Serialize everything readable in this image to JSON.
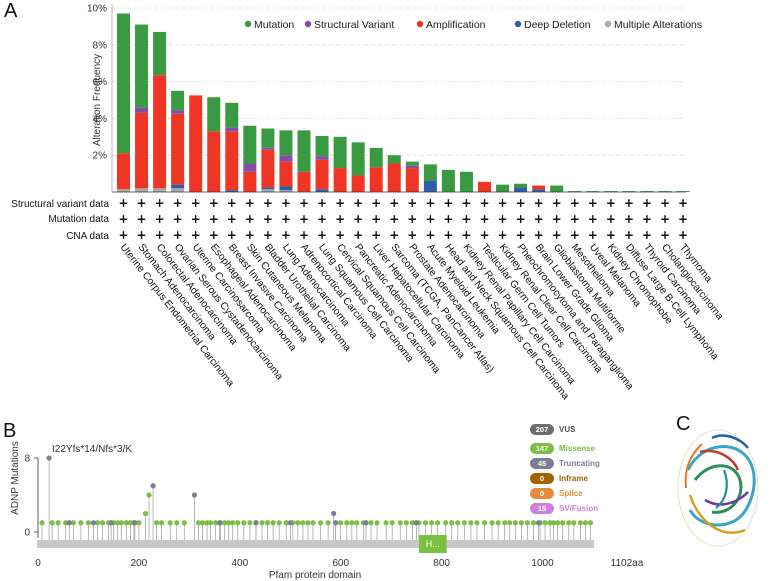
{
  "figure": {
    "panel_a": "A",
    "panel_b": "B",
    "panel_c": "C"
  },
  "colors": {
    "mutation": "#3a9a42",
    "structural_variant": "#8450a6",
    "amplification": "#ef3523",
    "deep_deletion": "#2f5fa8",
    "multiple": "#a9a9a9",
    "missense": "#7bc043",
    "truncating": "#7d7d94",
    "inframe": "#a36200",
    "splice": "#e58c3a",
    "sv_fusion": "#d07fe0",
    "vus": "#6d6d6d",
    "domain": "#7bc043",
    "track": "#c8c8c8"
  },
  "chart_data": [
    {
      "type": "bar",
      "stacked": true,
      "title": "",
      "ylabel": "Alteration Frequency",
      "ylim": [
        0,
        10
      ],
      "yticks": [
        "2%",
        "4%",
        "6%",
        "8%",
        "10%"
      ],
      "ytick_values": [
        2,
        4,
        6,
        8,
        10
      ],
      "grid": true,
      "legend_position": "top-right",
      "legend": [
        "Mutation",
        "Structural Variant",
        "Amplification",
        "Deep Deletion",
        "Multiple Alterations"
      ],
      "categories": [
        "Uterine Corpus Endometrial Carcinoma",
        "Stomach Adenocarcinoma",
        "Colorectal Adenocarcinoma",
        "Ovarian Serous Cystadenocarcinoma",
        "Uterine Carcinosarcoma",
        "Esophageal Adenocarcinoma",
        "Breast Invasive Carcinoma",
        "Skin Cutaneous Melanoma",
        "Bladder Urothelial Carcinoma",
        "Lung Adenocarcinoma",
        "Adrenocortical Carcinoma",
        "Lung Squamous Cell Carcinoma",
        "Cervical Squamous Cell Carcinoma",
        "Pancreatic Adenocarcinoma",
        "Liver Hepatocellular Carcinoma",
        "Sarcoma (TCGA, PanCancer Atlas)",
        "Prostate Adenocarcinoma",
        "Acute Myeloid Leukemia",
        "Head and Neck Squamous Cell Carcinoma",
        "Kidney Renal Papillary Cell Carcinoma",
        "Testicular Germ Cell Tumors",
        "Kidney Renal Clear Cell Carcinoma",
        "Pheochromocytoma and Paraganglioma",
        "Brain Lower Grade Glioma",
        "Glioblastoma Multiforme",
        "Mesothelioma",
        "Uveal Melanoma",
        "Kidney Chromophobe",
        "Diffuse Large B-Cell Lymphoma",
        "Thyroid Carcinoma",
        "Cholangiocarcinoma",
        "Thymoma"
      ],
      "series": [
        {
          "name": "Multiple Alterations",
          "values": [
            0.15,
            0.2,
            0.2,
            0.2,
            0,
            0,
            0,
            0,
            0.15,
            0.1,
            0,
            0,
            0,
            0,
            0,
            0,
            0,
            0,
            0,
            0,
            0,
            0,
            0,
            0,
            0,
            0,
            0,
            0,
            0,
            0,
            0,
            0
          ]
        },
        {
          "name": "Deep Deletion",
          "values": [
            0,
            0,
            0,
            0.2,
            0,
            0,
            0.1,
            0,
            0.1,
            0.2,
            0,
            0.15,
            0,
            0,
            0,
            0,
            0,
            0.6,
            0,
            0,
            0,
            0,
            0.25,
            0.15,
            0,
            0,
            0,
            0,
            0,
            0,
            0,
            0
          ]
        },
        {
          "name": "Amplification",
          "values": [
            1.95,
            4.1,
            6.15,
            3.85,
            5.25,
            3.3,
            3.2,
            1.1,
            2.05,
            1.35,
            1.1,
            1.6,
            1.3,
            0.9,
            1.35,
            1.55,
            1.3,
            0,
            0,
            0,
            0.55,
            0,
            0,
            0.2,
            0,
            0,
            0,
            0,
            0,
            0,
            0,
            0
          ]
        },
        {
          "name": "Structural Variant",
          "values": [
            0,
            0.3,
            0,
            0.2,
            0,
            0,
            0.2,
            0.45,
            0.1,
            0.35,
            0,
            0.2,
            0,
            0,
            0,
            0,
            0.15,
            0,
            0,
            0,
            0,
            0,
            0,
            0,
            0,
            0,
            0,
            0,
            0,
            0,
            0,
            0
          ]
        },
        {
          "name": "Mutation",
          "values": [
            7.6,
            4.5,
            2.35,
            1.05,
            0,
            1.85,
            1.35,
            2.05,
            1.05,
            1.35,
            2.25,
            1.1,
            1.7,
            1.8,
            1.05,
            0.45,
            0.2,
            0.9,
            1.2,
            1.1,
            0,
            0.4,
            0.2,
            0,
            0.35,
            0.05,
            0.05,
            0.05,
            0.05,
            0.05,
            0.05,
            0.05
          ]
        }
      ],
      "rows": [
        "Structural variant data",
        "Mutation data",
        "CNA data"
      ],
      "row_marker": "+"
    },
    {
      "type": "scatter",
      "subtype": "lollipop",
      "title": "",
      "ylabel": "ADNP Mutations",
      "xlabel": "Pfam protein domain",
      "annotation": "I22Yfs*14/Nfs*3/K",
      "xlim": [
        0,
        1102
      ],
      "ylim": [
        0,
        8
      ],
      "xticks": [
        0,
        200,
        400,
        600,
        800,
        1000
      ],
      "xtick_labels": [
        "0",
        "200",
        "400",
        "600",
        "800",
        "1000"
      ],
      "end_label": "1102aa",
      "yticks": [
        "0",
        "8"
      ],
      "domain": {
        "label": "H...",
        "start": 755,
        "end": 810
      },
      "legend": [
        {
          "count": "207",
          "label": "VUS",
          "kind": "vus"
        },
        {
          "count": "147",
          "label": "Missense",
          "kind": "missense"
        },
        {
          "count": "45",
          "label": "Truncating",
          "kind": "truncating"
        },
        {
          "count": "0",
          "label": "Inframe",
          "kind": "inframe"
        },
        {
          "count": "0",
          "label": "Splice",
          "kind": "splice"
        },
        {
          "count": "15",
          "label": "SV/Fusion",
          "kind": "sv_fusion"
        }
      ],
      "series": [
        {
          "name": "Missense",
          "points": [
            [
              8,
              1
            ],
            [
              28,
              1
            ],
            [
              40,
              1
            ],
            [
              55,
              1
            ],
            [
              70,
              1
            ],
            [
              85,
              1
            ],
            [
              100,
              1
            ],
            [
              118,
              1
            ],
            [
              128,
              1
            ],
            [
              140,
              1
            ],
            [
              150,
              1
            ],
            [
              158,
              1
            ],
            [
              165,
              1
            ],
            [
              175,
              1
            ],
            [
              183,
              1
            ],
            [
              190,
              1
            ],
            [
              200,
              1
            ],
            [
              213,
              2
            ],
            [
              220,
              4
            ],
            [
              235,
              1
            ],
            [
              245,
              1
            ],
            [
              262,
              1
            ],
            [
              275,
              1
            ],
            [
              290,
              1
            ],
            [
              318,
              1
            ],
            [
              326,
              1
            ],
            [
              335,
              1
            ],
            [
              342,
              1
            ],
            [
              352,
              1
            ],
            [
              362,
              1
            ],
            [
              370,
              1
            ],
            [
              378,
              1
            ],
            [
              386,
              1
            ],
            [
              396,
              1
            ],
            [
              408,
              1
            ],
            [
              420,
              1
            ],
            [
              432,
              1
            ],
            [
              444,
              1
            ],
            [
              455,
              1
            ],
            [
              466,
              1
            ],
            [
              478,
              1
            ],
            [
              492,
              1
            ],
            [
              505,
              1
            ],
            [
              515,
              1
            ],
            [
              525,
              1
            ],
            [
              535,
              1
            ],
            [
              545,
              1
            ],
            [
              560,
              1
            ],
            [
              575,
              1
            ],
            [
              590,
              1
            ],
            [
              600,
              1
            ],
            [
              612,
              1
            ],
            [
              622,
              1
            ],
            [
              632,
              1
            ],
            [
              645,
              1
            ],
            [
              660,
              1
            ],
            [
              672,
              1
            ],
            [
              690,
              1
            ],
            [
              702,
              1
            ],
            [
              718,
              1
            ],
            [
              730,
              1
            ],
            [
              742,
              1
            ],
            [
              755,
              1
            ],
            [
              768,
              1
            ],
            [
              780,
              1
            ],
            [
              792,
              1
            ],
            [
              808,
              1
            ],
            [
              820,
              1
            ],
            [
              832,
              1
            ],
            [
              845,
              1
            ],
            [
              858,
              1
            ],
            [
              870,
              1
            ],
            [
              885,
              1
            ],
            [
              900,
              1
            ],
            [
              912,
              1
            ],
            [
              925,
              1
            ],
            [
              935,
              1
            ],
            [
              946,
              1
            ],
            [
              958,
              1
            ],
            [
              970,
              1
            ],
            [
              982,
              1
            ],
            [
              995,
              1
            ],
            [
              1005,
              1
            ],
            [
              1015,
              1
            ],
            [
              1022,
              1
            ],
            [
              1030,
              1
            ],
            [
              1040,
              1
            ],
            [
              1052,
              1
            ],
            [
              1062,
              1
            ],
            [
              1075,
              1
            ],
            [
              1085,
              1
            ],
            [
              1095,
              1
            ]
          ]
        },
        {
          "name": "Truncating",
          "points": [
            [
              22,
              8
            ],
            [
              62,
              1
            ],
            [
              110,
              1
            ],
            [
              145,
              1
            ],
            [
              192,
              1
            ],
            [
              228,
              5
            ],
            [
              310,
              4
            ],
            [
              360,
              1
            ],
            [
              432,
              1
            ],
            [
              500,
              1
            ],
            [
              586,
              2
            ],
            [
              590,
              1
            ],
            [
              650,
              1
            ],
            [
              750,
              1
            ],
            [
              992,
              1
            ]
          ]
        }
      ]
    }
  ]
}
